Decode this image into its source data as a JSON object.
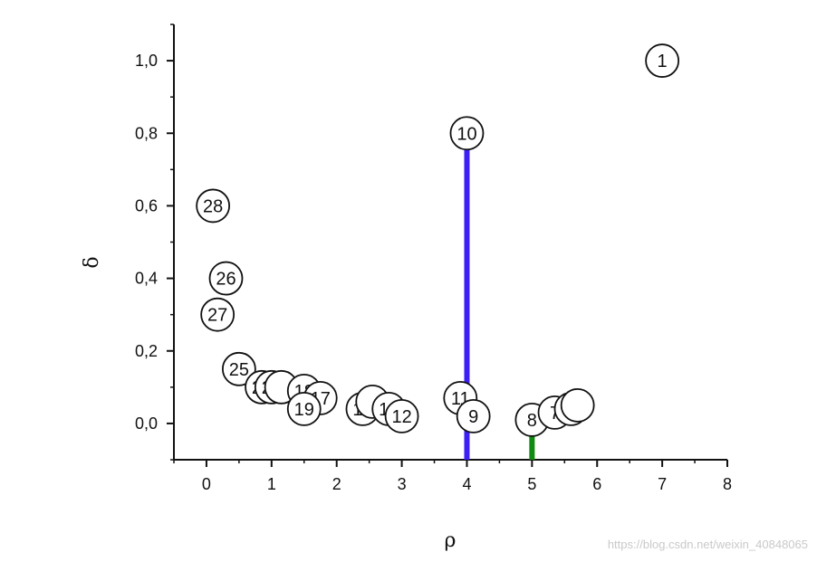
{
  "chart_data": {
    "type": "scatter",
    "title": "",
    "xlabel": "ρ",
    "ylabel": "δ",
    "xlim": [
      -0.5,
      8
    ],
    "ylim": [
      -0.1,
      1.1
    ],
    "x_ticks": [
      "0",
      "1",
      "2",
      "3",
      "4",
      "5",
      "6",
      "7",
      "8"
    ],
    "y_ticks": [
      "0,0",
      "0,2",
      "0,4",
      "0,6",
      "0,8",
      "1,0"
    ],
    "points": [
      {
        "label": "1",
        "x": 7.0,
        "y": 1.0
      },
      {
        "label": "10",
        "x": 4.0,
        "y": 0.8
      },
      {
        "label": "28",
        "x": 0.1,
        "y": 0.6
      },
      {
        "label": "26",
        "x": 0.3,
        "y": 0.4
      },
      {
        "label": "27",
        "x": 0.17,
        "y": 0.3
      },
      {
        "label": "25",
        "x": 0.5,
        "y": 0.15
      },
      {
        "label": "24",
        "x": 0.85,
        "y": 0.1
      },
      {
        "label": "20",
        "x": 1.0,
        "y": 0.1
      },
      {
        "label": "",
        "x": 1.15,
        "y": 0.1
      },
      {
        "label": "18",
        "x": 1.5,
        "y": 0.09
      },
      {
        "label": "17",
        "x": 1.75,
        "y": 0.07
      },
      {
        "label": "19",
        "x": 1.5,
        "y": 0.04
      },
      {
        "label": "15",
        "x": 2.4,
        "y": 0.04
      },
      {
        "label": "",
        "x": 2.55,
        "y": 0.06
      },
      {
        "label": "13",
        "x": 2.8,
        "y": 0.04
      },
      {
        "label": "12",
        "x": 3.0,
        "y": 0.02
      },
      {
        "label": "11",
        "x": 3.9,
        "y": 0.07
      },
      {
        "label": "9",
        "x": 4.1,
        "y": 0.02
      },
      {
        "label": "8",
        "x": 5.0,
        "y": 0.01
      },
      {
        "label": "7",
        "x": 5.35,
        "y": 0.03
      },
      {
        "label": "",
        "x": 5.6,
        "y": 0.04
      },
      {
        "label": "",
        "x": 5.7,
        "y": 0.05
      }
    ],
    "vlines": [
      {
        "x": 4.0,
        "y_from": -0.1,
        "y_to": 0.8,
        "color": "#3b1ff5"
      },
      {
        "x": 5.0,
        "y_from": -0.1,
        "y_to": 0.01,
        "color": "#118a11"
      }
    ]
  },
  "watermark": "https://blog.csdn.net/weixin_40848065"
}
